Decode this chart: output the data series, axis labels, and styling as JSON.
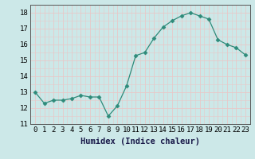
{
  "x": [
    0,
    1,
    2,
    3,
    4,
    5,
    6,
    7,
    8,
    9,
    10,
    11,
    12,
    13,
    14,
    15,
    16,
    17,
    18,
    19,
    20,
    21,
    22,
    23
  ],
  "y": [
    13.0,
    12.3,
    12.5,
    12.5,
    12.6,
    12.8,
    12.7,
    12.7,
    11.5,
    12.15,
    13.4,
    15.3,
    15.5,
    16.4,
    17.1,
    17.5,
    17.8,
    18.0,
    17.8,
    17.6,
    16.3,
    16.0,
    15.8,
    15.35
  ],
  "line_color": "#2e8b7a",
  "marker": "D",
  "marker_size": 2.5,
  "bg_color": "#cce8e8",
  "grid_color": "#e8c8c8",
  "xlabel": "Humidex (Indice chaleur)",
  "ylim": [
    11,
    18.5
  ],
  "xlim": [
    -0.5,
    23.5
  ],
  "yticks": [
    11,
    12,
    13,
    14,
    15,
    16,
    17,
    18
  ],
  "xticks": [
    0,
    1,
    2,
    3,
    4,
    5,
    6,
    7,
    8,
    9,
    10,
    11,
    12,
    13,
    14,
    15,
    16,
    17,
    18,
    19,
    20,
    21,
    22,
    23
  ],
  "xlabel_fontsize": 7.5,
  "tick_fontsize": 6.5
}
